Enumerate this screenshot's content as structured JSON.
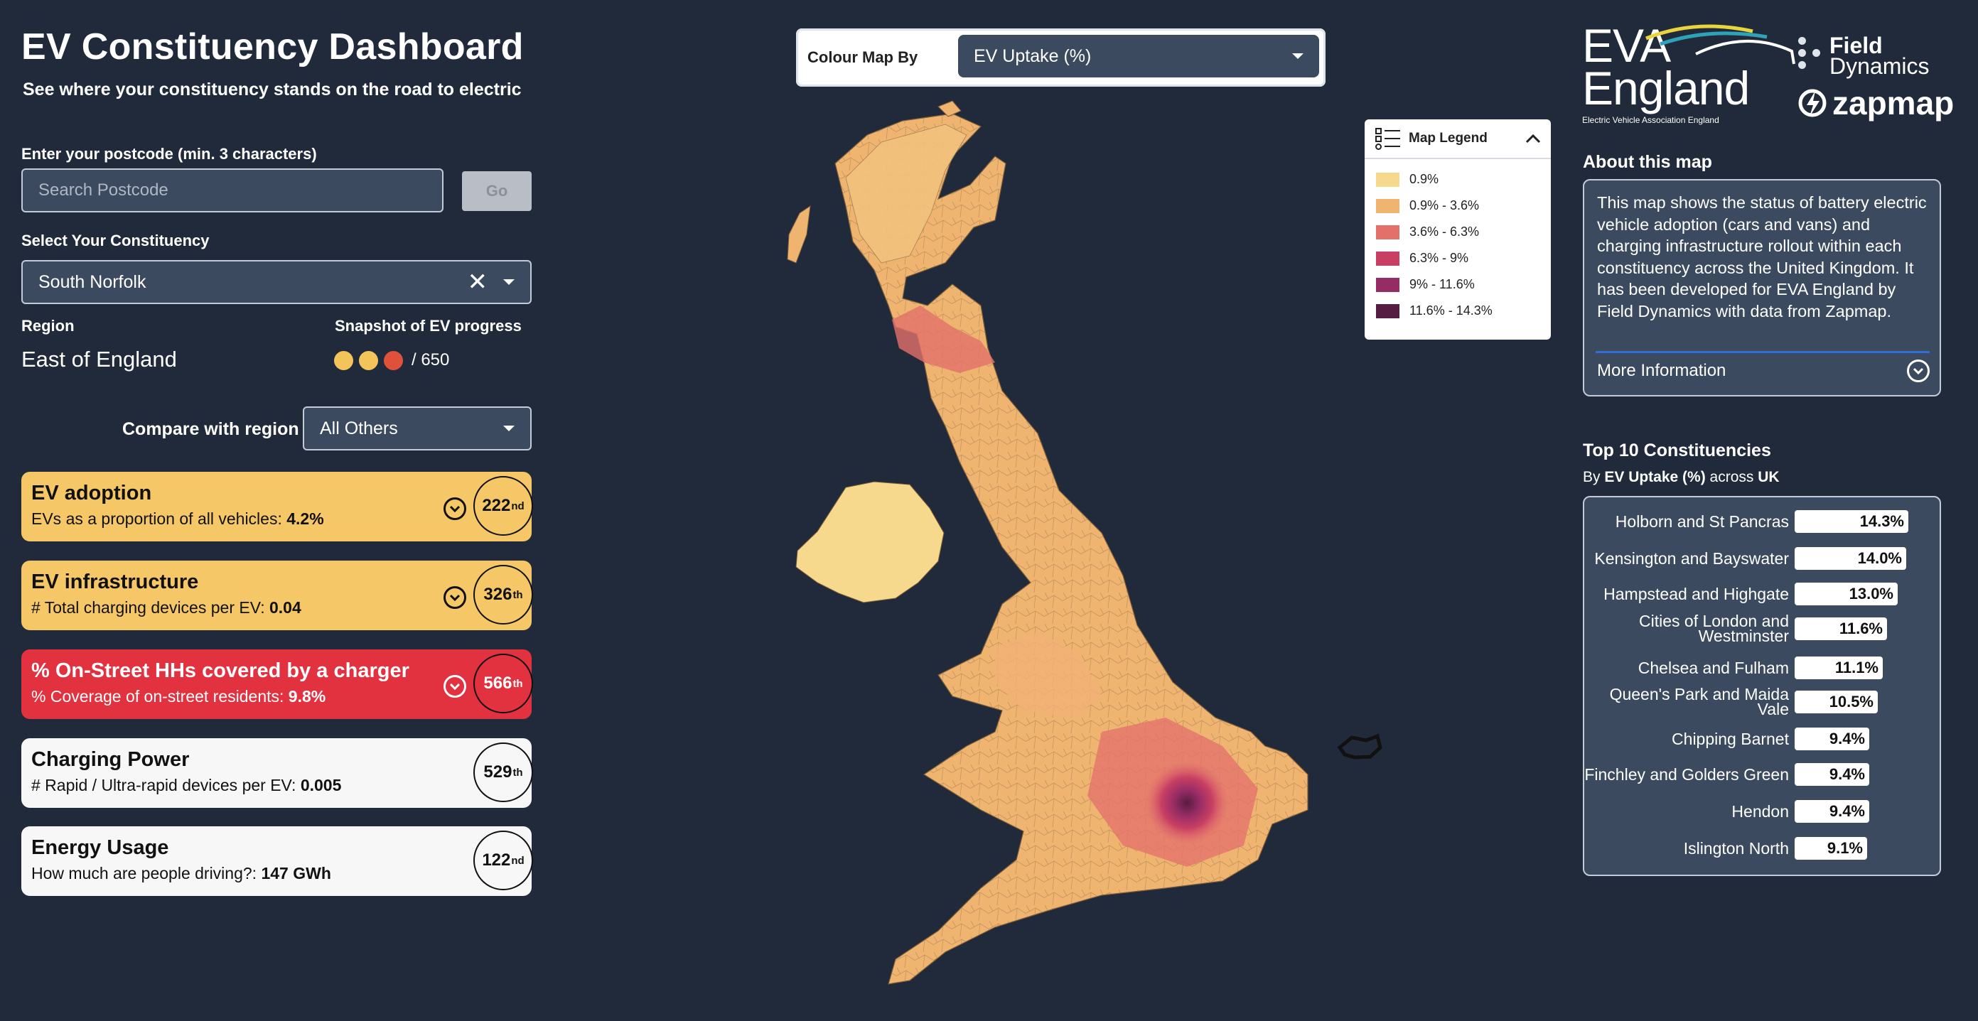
{
  "header": {
    "title": "EV Constituency Dashboard",
    "subtitle": "See where your constituency stands on the road to electric"
  },
  "postcode": {
    "label": "Enter your postcode (min. 3 characters)",
    "placeholder": "Search Postcode",
    "go_label": "Go"
  },
  "constituency": {
    "label": "Select Your Constituency",
    "selected": "South Norfolk"
  },
  "region": {
    "label": "Region",
    "value": "East of England"
  },
  "snapshot": {
    "label": "Snapshot of EV progress",
    "total": "/ 650",
    "dot_colors": [
      "#f2c45a",
      "#f2c45a",
      "#e0513c"
    ]
  },
  "compare": {
    "label": "Compare with region",
    "selected": "All Others"
  },
  "metrics": [
    {
      "title": "EV adoption",
      "sub": "EVs as a proportion of all vehicles: ",
      "value": "4.2%",
      "rank": "222",
      "suffix": "nd",
      "color": "#f5c767",
      "expandable": true
    },
    {
      "title": "EV infrastructure",
      "sub": "# Total charging devices per EV: ",
      "value": "0.04",
      "rank": "326",
      "suffix": "th",
      "color": "#f5c767",
      "expandable": true
    },
    {
      "title": "% On-Street HHs covered by a charger",
      "sub": "% Coverage of on-street residents: ",
      "value": "9.8%",
      "rank": "566",
      "suffix": "th",
      "color": "#e2313f",
      "expandable": true
    },
    {
      "title": "Charging Power",
      "sub": "# Rapid / Ultra-rapid devices per EV: ",
      "value": "0.005",
      "rank": "529",
      "suffix": "th",
      "color": "#f7f7f7",
      "expandable": false
    },
    {
      "title": "Energy Usage",
      "sub": "How much are people driving?: ",
      "value": "147 GWh",
      "rank": "122",
      "suffix": "nd",
      "color": "#f7f7f7",
      "expandable": false
    }
  ],
  "colour_map": {
    "label": "Colour Map By",
    "selected": "EV Uptake (%)"
  },
  "legend": {
    "title": "Map Legend",
    "items": [
      {
        "label": "0.9%",
        "color": "#f7d98e"
      },
      {
        "label": "0.9% - 3.6%",
        "color": "#efb470"
      },
      {
        "label": "3.6% - 6.3%",
        "color": "#e4706c"
      },
      {
        "label": "6.3% - 9%",
        "color": "#c83f63"
      },
      {
        "label": "9% - 11.6%",
        "color": "#962c64"
      },
      {
        "label": "11.6% - 14.3%",
        "color": "#561d42"
      }
    ]
  },
  "logos": {
    "eva_line1": "EVA",
    "eva_line2": "England",
    "eva_tagline": "Electric Vehicle Association England",
    "fd_line1": "Field",
    "fd_line2": "Dynamics",
    "zapmap": "zapmap"
  },
  "about": {
    "title": "About this map",
    "text": "This map shows the status of battery electric vehicle adoption (cars and vans) and charging infrastructure rollout within each constituency across the United Kingdom. It has been developed for EVA England by Field Dynamics with data from Zapmap.",
    "more_label": "More Information"
  },
  "top10": {
    "title": "Top 10 Constituencies",
    "sub_prefix": "By ",
    "sub_metric": "EV Uptake (%)",
    "sub_mid": " across ",
    "sub_area": "UK",
    "rows": [
      {
        "name": "Holborn and St Pancras",
        "value": "14.3%",
        "pct": 14.3
      },
      {
        "name": "Kensington and Bayswater",
        "value": "14.0%",
        "pct": 14.0
      },
      {
        "name": "Hampstead and Highgate",
        "value": "13.0%",
        "pct": 13.0
      },
      {
        "name": "Cities of London and Westminster",
        "value": "11.6%",
        "pct": 11.6
      },
      {
        "name": "Chelsea and Fulham",
        "value": "11.1%",
        "pct": 11.1
      },
      {
        "name": "Queen's Park and Maida Vale",
        "value": "10.5%",
        "pct": 10.5
      },
      {
        "name": "Chipping Barnet",
        "value": "9.4%",
        "pct": 9.4
      },
      {
        "name": "Finchley and Golders Green",
        "value": "9.4%",
        "pct": 9.4
      },
      {
        "name": "Hendon",
        "value": "9.4%",
        "pct": 9.4
      },
      {
        "name": "Islington North",
        "value": "9.1%",
        "pct": 9.1
      }
    ]
  }
}
